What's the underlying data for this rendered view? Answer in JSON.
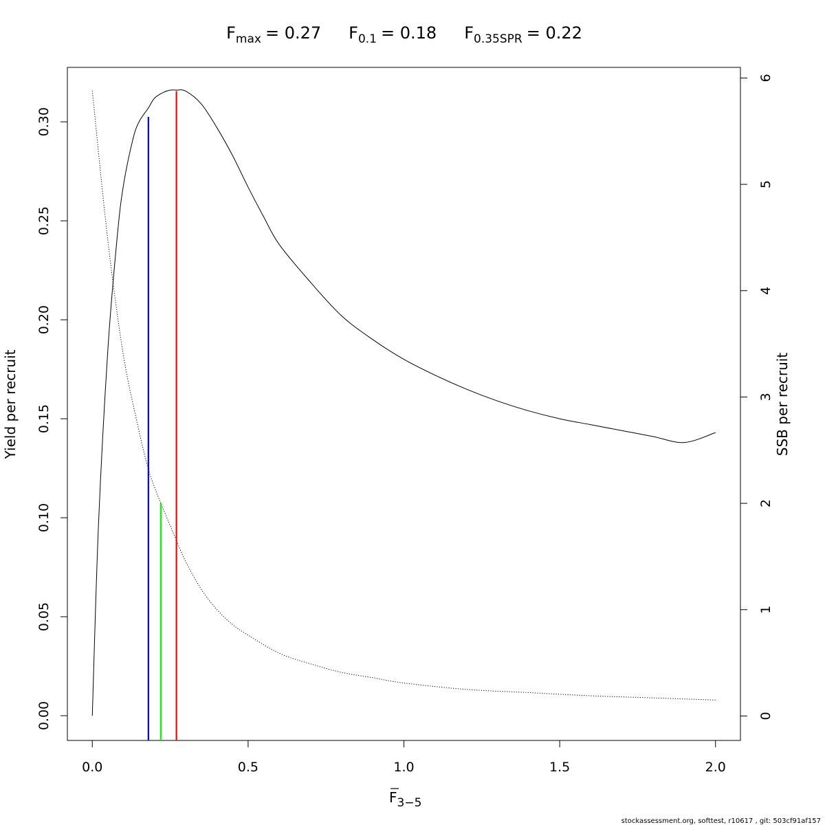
{
  "chart_data": {
    "type": "line",
    "title": {
      "fmax": {
        "symbol": "F",
        "subscript": "max",
        "value_text": "= 0.27"
      },
      "f01": {
        "symbol": "F",
        "subscript": "0.1",
        "value_text": "= 0.18"
      },
      "f035": {
        "symbol": "F",
        "subscript": "0.35SPR",
        "value_text": "= 0.22"
      }
    },
    "xlabel": {
      "symbol": "F",
      "subscript": "3−5"
    },
    "ylabel": "Yield per recruit",
    "y2label": "SSB per recruit",
    "xlim": [
      -0.08,
      2.08
    ],
    "ylim": [
      -0.0125,
      0.3275
    ],
    "y2lim": [
      -0.23,
      6.1
    ],
    "x_ticks": [
      {
        "value": 0.0,
        "label": "0.0"
      },
      {
        "value": 0.5,
        "label": "0.5"
      },
      {
        "value": 1.0,
        "label": "1.0"
      },
      {
        "value": 1.5,
        "label": "1.5"
      },
      {
        "value": 2.0,
        "label": "2.0"
      }
    ],
    "y_ticks": [
      {
        "value": 0.0,
        "label": "0.00"
      },
      {
        "value": 0.05,
        "label": "0.05"
      },
      {
        "value": 0.1,
        "label": "0.10"
      },
      {
        "value": 0.15,
        "label": "0.15"
      },
      {
        "value": 0.2,
        "label": "0.20"
      },
      {
        "value": 0.25,
        "label": "0.25"
      },
      {
        "value": 0.3,
        "label": "0.30"
      }
    ],
    "y2_ticks": [
      {
        "value": 0,
        "label": "0"
      },
      {
        "value": 1,
        "label": "1"
      },
      {
        "value": 2,
        "label": "2"
      },
      {
        "value": 3,
        "label": "3"
      },
      {
        "value": 4,
        "label": "4"
      },
      {
        "value": 5,
        "label": "5"
      },
      {
        "value": 6,
        "label": "6"
      }
    ],
    "series": [
      {
        "id": "yield",
        "axis": "left",
        "style": "solid",
        "color": "#000000",
        "x": [
          0,
          0.02,
          0.05,
          0.08,
          0.1,
          0.13,
          0.15,
          0.18,
          0.2,
          0.23,
          0.25,
          0.27,
          0.3,
          0.35,
          0.4,
          0.45,
          0.5,
          0.55,
          0.6,
          0.7,
          0.8,
          0.9,
          1.0,
          1.1,
          1.2,
          1.3,
          1.4,
          1.5,
          1.6,
          1.7,
          1.8,
          1.9,
          2.0
        ],
        "y": [
          0,
          0.097,
          0.185,
          0.242,
          0.268,
          0.291,
          0.3,
          0.307,
          0.312,
          0.315,
          0.316,
          0.316,
          0.3155,
          0.309,
          0.297,
          0.283,
          0.267,
          0.252,
          0.238,
          0.219,
          0.202,
          0.19,
          0.18,
          0.172,
          0.165,
          0.159,
          0.154,
          0.15,
          0.147,
          0.144,
          0.141,
          0.138,
          0.143
        ]
      },
      {
        "id": "ssb",
        "axis": "right",
        "style": "dotted",
        "color": "#000000",
        "x": [
          0,
          0.05,
          0.1,
          0.15,
          0.18,
          0.2,
          0.22,
          0.25,
          0.27,
          0.3,
          0.35,
          0.4,
          0.45,
          0.5,
          0.6,
          0.7,
          0.8,
          0.9,
          1.0,
          1.2,
          1.4,
          1.6,
          1.8,
          2.0
        ],
        "y": [
          5.88,
          4.47,
          3.39,
          2.68,
          2.32,
          2.15,
          2.0,
          1.79,
          1.65,
          1.45,
          1.19,
          1.0,
          0.86,
          0.76,
          0.59,
          0.49,
          0.41,
          0.36,
          0.31,
          0.25,
          0.22,
          0.19,
          0.17,
          0.15
        ]
      }
    ],
    "reference_lines": [
      {
        "id": "f01",
        "label": "F0.1",
        "x": 0.18,
        "y_top": 0.3025,
        "color": "#0000ff"
      },
      {
        "id": "f035",
        "label": "F0.35SPR",
        "x": 0.22,
        "y_top": 0.1075,
        "color": "#00ff00"
      },
      {
        "id": "fmax",
        "label": "Fmax",
        "x": 0.27,
        "y_top": 0.3155,
        "color": "#ff0000"
      }
    ]
  },
  "footer": "stockassessment.org, softtest, r10617 , git: 503cf91af157"
}
